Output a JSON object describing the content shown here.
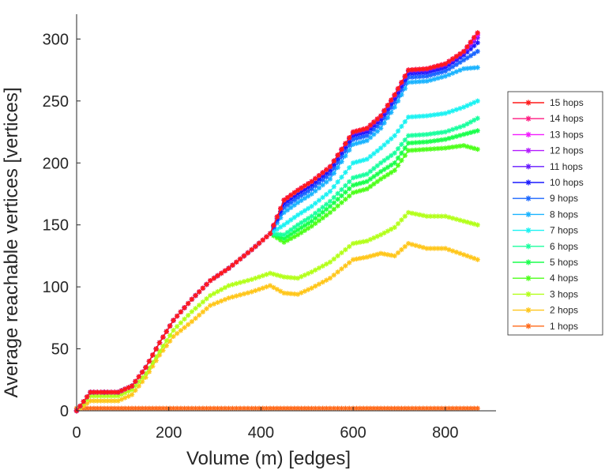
{
  "chart_data": {
    "type": "line",
    "title": "",
    "xlabel": "Volume (m) [edges]",
    "ylabel": "Average reachable vertices [vertices]",
    "xlim": [
      0,
      910
    ],
    "ylim": [
      0,
      320
    ],
    "xticks": [
      0,
      200,
      400,
      600,
      800
    ],
    "yticks": [
      0,
      50,
      100,
      150,
      200,
      250,
      300
    ],
    "grid": false,
    "legend_position": "right",
    "marker": "asterisk",
    "x": [
      0,
      30,
      90,
      120,
      150,
      180,
      210,
      250,
      290,
      330,
      380,
      420,
      450,
      480,
      510,
      550,
      600,
      630,
      660,
      690,
      720,
      760,
      800,
      840,
      870
    ],
    "series": [
      {
        "name": "15 hops",
        "color": "#ff1a1a",
        "values": [
          0,
          15,
          15,
          20,
          35,
          55,
          73,
          90,
          105,
          115,
          130,
          143,
          170,
          178,
          185,
          197,
          225,
          228,
          238,
          255,
          275,
          276,
          280,
          290,
          305
        ]
      },
      {
        "name": "14 hops",
        "color": "#ff1a80",
        "values": [
          0,
          15,
          15,
          20,
          35,
          55,
          73,
          90,
          105,
          115,
          130,
          143,
          170,
          178,
          185,
          197,
          225,
          228,
          238,
          255,
          275,
          276,
          280,
          290,
          305
        ]
      },
      {
        "name": "13 hops",
        "color": "#f21aff",
        "values": [
          0,
          15,
          15,
          20,
          35,
          55,
          73,
          90,
          105,
          115,
          130,
          143,
          170,
          178,
          185,
          197,
          225,
          228,
          238,
          255,
          275,
          276,
          280,
          290,
          304
        ]
      },
      {
        "name": "12 hops",
        "color": "#b31aff",
        "values": [
          0,
          15,
          15,
          20,
          35,
          55,
          73,
          90,
          105,
          115,
          130,
          143,
          170,
          178,
          185,
          197,
          225,
          228,
          238,
          255,
          275,
          276,
          280,
          290,
          303
        ]
      },
      {
        "name": "11 hops",
        "color": "#661aff",
        "values": [
          0,
          15,
          15,
          20,
          35,
          55,
          73,
          90,
          105,
          115,
          130,
          143,
          170,
          178,
          185,
          197,
          224,
          227,
          237,
          254,
          274,
          275,
          279,
          289,
          301
        ]
      },
      {
        "name": "10 hops",
        "color": "#1a1aff",
        "values": [
          0,
          15,
          15,
          20,
          35,
          55,
          73,
          90,
          105,
          115,
          130,
          143,
          167,
          175,
          182,
          194,
          222,
          225,
          235,
          252,
          272,
          273,
          277,
          287,
          297
        ]
      },
      {
        "name": "9 hops",
        "color": "#1a66ff",
        "values": [
          0,
          15,
          15,
          20,
          35,
          55,
          73,
          90,
          105,
          115,
          130,
          143,
          164,
          172,
          179,
          191,
          219,
          222,
          232,
          249,
          269,
          270,
          274,
          283,
          290
        ]
      },
      {
        "name": "8 hops",
        "color": "#1ab3ff",
        "values": [
          0,
          15,
          15,
          20,
          35,
          55,
          73,
          90,
          105,
          115,
          130,
          143,
          160,
          168,
          175,
          187,
          215,
          218,
          228,
          245,
          265,
          266,
          270,
          276,
          277
        ]
      },
      {
        "name": "7 hops",
        "color": "#1af2f2",
        "values": [
          0,
          15,
          15,
          20,
          35,
          55,
          73,
          90,
          105,
          115,
          130,
          143,
          150,
          158,
          165,
          177,
          200,
          203,
          212,
          222,
          237,
          238,
          240,
          245,
          250
        ]
      },
      {
        "name": "6 hops",
        "color": "#1aff9e",
        "values": [
          0,
          15,
          15,
          20,
          35,
          55,
          73,
          90,
          105,
          115,
          130,
          143,
          142,
          150,
          157,
          169,
          188,
          191,
          200,
          208,
          222,
          223,
          225,
          230,
          236
        ]
      },
      {
        "name": "5 hops",
        "color": "#1aff4d",
        "values": [
          0,
          15,
          15,
          20,
          35,
          55,
          73,
          90,
          105,
          115,
          130,
          143,
          139,
          146,
          153,
          165,
          182,
          185,
          193,
          200,
          216,
          217,
          219,
          223,
          226
        ]
      },
      {
        "name": "4 hops",
        "color": "#4dff1a",
        "values": [
          0,
          15,
          15,
          20,
          35,
          55,
          73,
          90,
          105,
          115,
          130,
          143,
          136,
          142,
          149,
          160,
          176,
          179,
          187,
          194,
          210,
          211,
          212,
          214,
          211
        ]
      },
      {
        "name": "3 hops",
        "color": "#b3ff1a",
        "values": [
          0,
          12,
          12,
          17,
          30,
          48,
          65,
          80,
          93,
          101,
          106,
          111,
          108,
          107,
          112,
          120,
          135,
          137,
          142,
          148,
          160,
          157,
          157,
          153,
          150
        ]
      },
      {
        "name": "2 hops",
        "color": "#ffc61a",
        "values": [
          0,
          8,
          8,
          13,
          27,
          45,
          60,
          72,
          85,
          91,
          96,
          101,
          95,
          94,
          99,
          107,
          122,
          124,
          127,
          125,
          135,
          131,
          131,
          126,
          122
        ]
      },
      {
        "name": "1 hops",
        "color": "#ff6a1a",
        "values": [
          2,
          2,
          2,
          2,
          2,
          2,
          2,
          2,
          2,
          2,
          2,
          2,
          2,
          2,
          2,
          2,
          2,
          2,
          2,
          2,
          2,
          2,
          2,
          2,
          2
        ]
      }
    ]
  }
}
